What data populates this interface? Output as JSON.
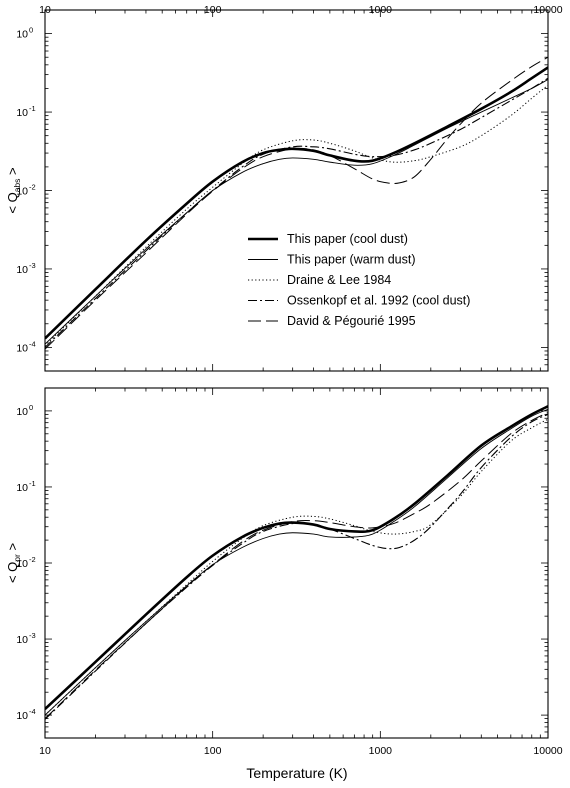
{
  "figure": {
    "xlabel": "Temperature (K)"
  },
  "chart_data": [
    {
      "type": "line",
      "x_scale": "log",
      "y_scale": "log",
      "xlim": [
        10,
        10000
      ],
      "ylim": [
        5e-05,
        2
      ],
      "x_ticks": [
        "10",
        "100",
        "1000",
        "10000"
      ],
      "y_ticks": [
        {
          "base": "10",
          "exp": "0"
        },
        {
          "base": "10",
          "exp": "-1"
        },
        {
          "base": "10",
          "exp": "-2"
        },
        {
          "base": "10",
          "exp": "-3"
        },
        {
          "base": "10",
          "exp": "-4"
        }
      ],
      "ylabel": {
        "prefix": "< Q",
        "sub": "abs",
        "suffix": " >"
      },
      "legend_position": "center",
      "series": [
        {
          "name": "This paper (cool dust)",
          "style": "solid-thick",
          "x": [
            10,
            20,
            40,
            70,
            100,
            150,
            200,
            250,
            300,
            400,
            500,
            700,
            900,
            1200,
            1600,
            2500,
            4000,
            6000,
            8000,
            10000
          ],
          "y": [
            0.00013,
            0.00055,
            0.0023,
            0.0068,
            0.013,
            0.023,
            0.03,
            0.033,
            0.034,
            0.032,
            0.028,
            0.024,
            0.024,
            0.03,
            0.04,
            0.065,
            0.11,
            0.18,
            0.27,
            0.37
          ]
        },
        {
          "name": "This paper (warm dust)",
          "style": "solid-thin",
          "x": [
            10,
            20,
            40,
            70,
            100,
            150,
            200,
            250,
            300,
            400,
            500,
            700,
            900,
            1200,
            1600,
            2500,
            4000,
            6000,
            8000,
            10000
          ],
          "y": [
            0.00011,
            0.00045,
            0.0018,
            0.0052,
            0.01,
            0.017,
            0.022,
            0.025,
            0.026,
            0.025,
            0.023,
            0.021,
            0.022,
            0.028,
            0.038,
            0.062,
            0.1,
            0.15,
            0.2,
            0.26
          ]
        },
        {
          "name": "Draine & Lee 1984",
          "style": "dotted",
          "x": [
            10,
            20,
            40,
            70,
            100,
            150,
            200,
            300,
            400,
            500,
            700,
            900,
            1200,
            1600,
            2000,
            3000,
            4000,
            6000,
            8000,
            10000
          ],
          "y": [
            0.000105,
            0.00045,
            0.0019,
            0.0058,
            0.011,
            0.022,
            0.033,
            0.043,
            0.044,
            0.04,
            0.032,
            0.026,
            0.023,
            0.024,
            0.027,
            0.036,
            0.05,
            0.09,
            0.15,
            0.22
          ]
        },
        {
          "name": "Ossenkopf et al. 1992 (cool dust)",
          "style": "dash-dot",
          "x": [
            10,
            20,
            40,
            70,
            100,
            150,
            200,
            300,
            400,
            500,
            700,
            900,
            1200,
            1600,
            2000,
            3000,
            4000,
            6000,
            8000,
            10000
          ],
          "y": [
            0.0001,
            0.00042,
            0.0017,
            0.0052,
            0.01,
            0.02,
            0.029,
            0.036,
            0.036,
            0.034,
            0.029,
            0.027,
            0.028,
            0.033,
            0.04,
            0.06,
            0.085,
            0.14,
            0.2,
            0.27
          ]
        },
        {
          "name": "David & Pégourié 1995",
          "style": "long-dash",
          "x": [
            10,
            20,
            40,
            70,
            100,
            150,
            200,
            300,
            400,
            500,
            700,
            900,
            1100,
            1300,
            1600,
            2000,
            2500,
            3000,
            4000,
            6000,
            8000,
            10000
          ],
          "y": [
            9.5e-05,
            0.0004,
            0.0016,
            0.005,
            0.0098,
            0.019,
            0.027,
            0.034,
            0.033,
            0.028,
            0.019,
            0.014,
            0.0125,
            0.0125,
            0.015,
            0.025,
            0.045,
            0.07,
            0.13,
            0.25,
            0.38,
            0.5
          ]
        }
      ]
    },
    {
      "type": "line",
      "x_scale": "log",
      "y_scale": "log",
      "xlim": [
        10,
        10000
      ],
      "ylim": [
        5e-05,
        2
      ],
      "x_ticks": [
        "10",
        "100",
        "1000",
        "10000"
      ],
      "y_ticks": [
        {
          "base": "10",
          "exp": "0"
        },
        {
          "base": "10",
          "exp": "-1"
        },
        {
          "base": "10",
          "exp": "-2"
        },
        {
          "base": "10",
          "exp": "-3"
        },
        {
          "base": "10",
          "exp": "-4"
        }
      ],
      "ylabel": {
        "prefix": "< Q",
        "sub": "pr",
        "suffix": " >"
      },
      "series": [
        {
          "name": "This paper (cool dust)",
          "style": "solid-thick",
          "x": [
            10,
            20,
            40,
            70,
            100,
            150,
            200,
            250,
            300,
            400,
            500,
            700,
            900,
            1200,
            1600,
            2500,
            4000,
            6000,
            8000,
            10000
          ],
          "y": [
            0.00012,
            0.0005,
            0.0021,
            0.0065,
            0.0125,
            0.022,
            0.029,
            0.033,
            0.034,
            0.032,
            0.028,
            0.026,
            0.027,
            0.038,
            0.06,
            0.14,
            0.35,
            0.62,
            0.9,
            1.15
          ]
        },
        {
          "name": "This paper (warm dust)",
          "style": "solid-thin",
          "x": [
            10,
            20,
            40,
            70,
            100,
            150,
            200,
            250,
            300,
            400,
            500,
            700,
            900,
            1200,
            1600,
            2500,
            4000,
            6000,
            8000,
            10000
          ],
          "y": [
            0.0001,
            0.00042,
            0.0017,
            0.005,
            0.0095,
            0.016,
            0.021,
            0.024,
            0.025,
            0.024,
            0.022,
            0.022,
            0.024,
            0.035,
            0.055,
            0.13,
            0.32,
            0.58,
            0.85,
            1.05
          ]
        },
        {
          "name": "Draine & Lee 1984",
          "style": "dotted",
          "x": [
            10,
            20,
            40,
            70,
            100,
            150,
            200,
            300,
            400,
            500,
            700,
            900,
            1200,
            1600,
            2000,
            3000,
            4000,
            6000,
            8000,
            10000
          ],
          "y": [
            0.0001,
            0.00042,
            0.0017,
            0.0052,
            0.0105,
            0.021,
            0.031,
            0.04,
            0.041,
            0.038,
            0.031,
            0.026,
            0.024,
            0.026,
            0.032,
            0.075,
            0.16,
            0.4,
            0.6,
            0.78
          ]
        },
        {
          "name": "Ossenkopf et al. 1992 (cool dust)",
          "style": "dash-dot",
          "x": [
            10,
            20,
            40,
            70,
            100,
            150,
            200,
            300,
            400,
            500,
            700,
            900,
            1100,
            1300,
            1600,
            2000,
            3000,
            4000,
            6000,
            8000,
            10000
          ],
          "y": [
            8.8e-05,
            0.00038,
            0.0016,
            0.0048,
            0.0093,
            0.018,
            0.026,
            0.033,
            0.032,
            0.028,
            0.021,
            0.017,
            0.0155,
            0.016,
            0.02,
            0.03,
            0.08,
            0.18,
            0.45,
            0.72,
            0.9
          ]
        },
        {
          "name": "David & Pégourié 1995",
          "style": "long-dash",
          "x": [
            10,
            20,
            40,
            70,
            100,
            150,
            200,
            300,
            400,
            500,
            700,
            900,
            1200,
            1600,
            2000,
            3000,
            4000,
            6000,
            8000,
            10000
          ],
          "y": [
            9e-05,
            0.00039,
            0.0016,
            0.0049,
            0.0095,
            0.019,
            0.027,
            0.035,
            0.036,
            0.034,
            0.03,
            0.029,
            0.033,
            0.045,
            0.06,
            0.12,
            0.22,
            0.5,
            0.75,
            0.95
          ]
        }
      ]
    }
  ]
}
